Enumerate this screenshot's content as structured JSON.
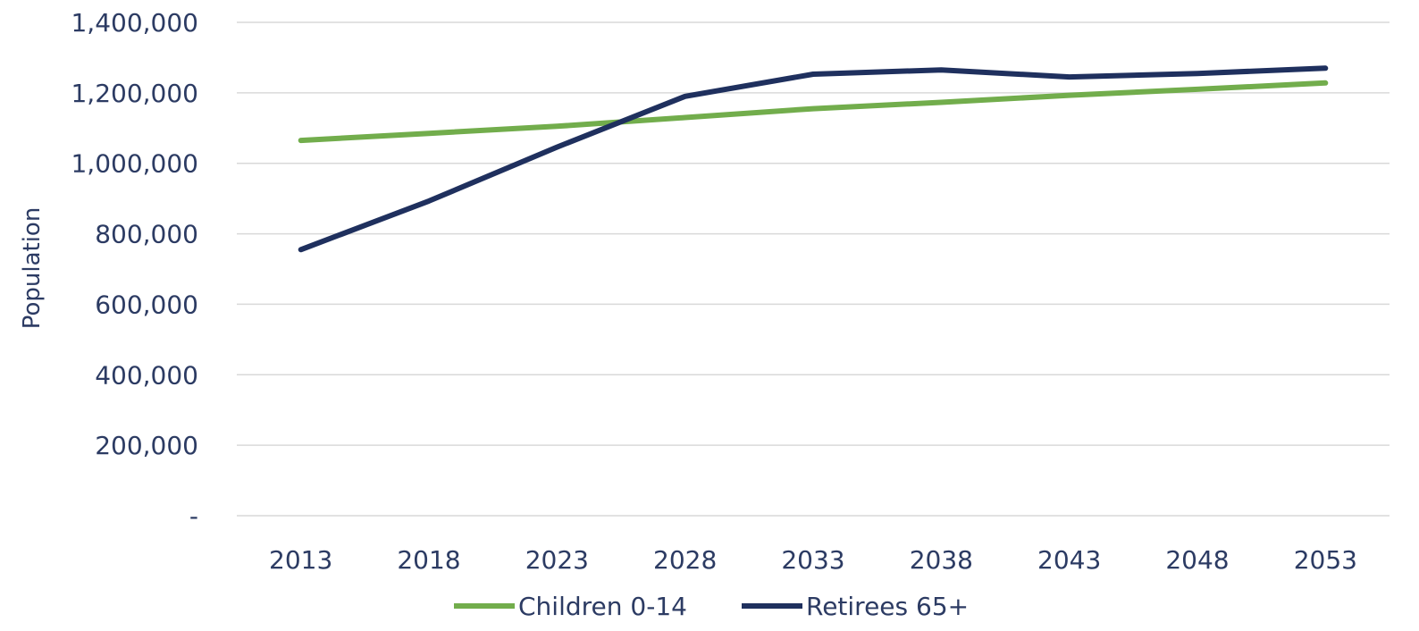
{
  "chart_data": {
    "type": "line",
    "title": "",
    "xlabel": "",
    "ylabel": "Population",
    "categories": [
      "2013",
      "2018",
      "2023",
      "2028",
      "2033",
      "2038",
      "2043",
      "2048",
      "2053"
    ],
    "series": [
      {
        "name": "Children 0-14",
        "color": "#72ad4c",
        "values": [
          1065000,
          1085000,
          1105000,
          1130000,
          1155000,
          1173000,
          1193000,
          1210000,
          1228000
        ]
      },
      {
        "name": "Retirees 65+",
        "color": "#1f305e",
        "values": [
          755000,
          893000,
          1046000,
          1190000,
          1253000,
          1265000,
          1245000,
          1255000,
          1270000
        ]
      }
    ],
    "ylim": [
      0,
      1400000
    ],
    "yticks": [
      0,
      200000,
      400000,
      600000,
      800000,
      1000000,
      1200000,
      1400000
    ],
    "ytick_labels": [
      "-",
      "200,000",
      "400,000",
      "600,000",
      "800,000",
      "1,000,000",
      "1,200,000",
      "1,400,000"
    ],
    "grid": "horizontal",
    "legend_position": "bottom-center",
    "text_color": "#2c3b63",
    "grid_color": "#d9d9d9"
  }
}
